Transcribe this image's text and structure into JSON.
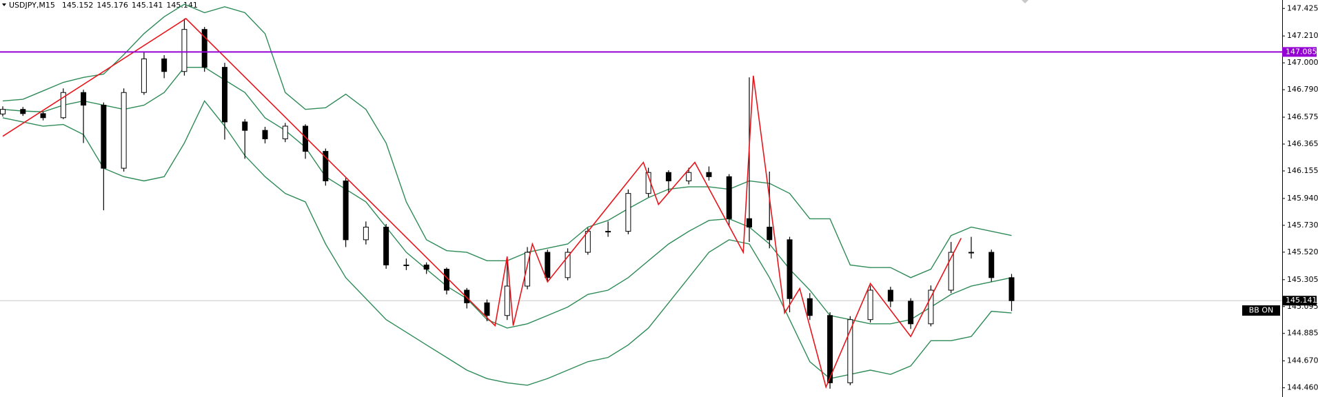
{
  "chart_data": {
    "type": "candlestick",
    "title": "USDJPY,M15",
    "quote": [
      145.152,
      145.176,
      145.141,
      145.141
    ],
    "ylim": [
      144.388,
      147.491
    ],
    "yticks": [
      147.425,
      {
        "value": 147.21,
        "label": "147.210"
      },
      {
        "value": 147,
        "label": "147.000"
      },
      {
        "value": 146.79,
        "label": "146.790"
      },
      146.575,
      146.365,
      146.155,
      {
        "value": 145.94,
        "label": "145.940"
      },
      {
        "value": 145.73,
        "label": "145.730"
      },
      {
        "value": 145.52,
        "label": "145.520"
      },
      145.305,
      145.095,
      144.885,
      {
        "value": 144.67,
        "label": "144.670"
      },
      {
        "value": 144.46,
        "label": "144.460"
      }
    ],
    "candles": {
      "open": [
        146.6,
        146.636,
        146.603,
        146.571,
        146.768,
        146.669,
        146.176,
        146.768,
        147.031,
        146.932,
        147.261,
        146.965,
        146.538,
        146.472,
        146.406,
        146.505,
        146.308,
        146.077,
        145.617,
        145.716,
        145.42,
        145.42,
        145.387,
        145.223,
        145.124,
        145.025,
        145.255,
        145.519,
        145.321,
        145.519,
        145.683,
        145.683,
        145.979,
        146.143,
        146.077,
        146.143,
        146.11,
        145.782,
        145.716,
        145.617,
        145.157,
        145.025,
        144.499,
        144.993,
        145.223,
        145.137,
        144.96,
        145.223,
        145.519,
        145.519,
        145.321
      ],
      "high": [
        146.66,
        146.655,
        146.62,
        146.8,
        146.79,
        146.69,
        146.8,
        147.09,
        147.06,
        147.346,
        147.28,
        147.0,
        146.56,
        146.5,
        146.53,
        146.52,
        146.33,
        146.1,
        145.76,
        145.74,
        145.47,
        145.44,
        145.4,
        145.24,
        145.15,
        145.45,
        145.56,
        145.54,
        145.55,
        145.71,
        145.76,
        146.01,
        146.18,
        146.16,
        146.18,
        146.19,
        146.13,
        146.886,
        146.15,
        145.64,
        145.2,
        145.05,
        145.02,
        145.26,
        145.25,
        145.16,
        145.26,
        145.6,
        145.64,
        145.54,
        145.35
      ],
      "low": [
        146.58,
        146.585,
        146.55,
        146.56,
        146.373,
        145.847,
        146.15,
        146.75,
        146.88,
        146.9,
        146.93,
        146.4,
        146.25,
        146.37,
        146.38,
        146.25,
        146.04,
        145.56,
        145.58,
        145.39,
        145.38,
        145.35,
        145.19,
        145.08,
        144.98,
        144.99,
        145.23,
        145.29,
        145.3,
        145.5,
        145.64,
        145.66,
        145.95,
        145.98,
        146.05,
        146.08,
        145.72,
        145.6,
        145.55,
        145.05,
        144.99,
        144.453,
        144.48,
        144.97,
        145.09,
        144.92,
        144.94,
        145.2,
        145.47,
        145.29,
        145.06
      ],
      "close": [
        146.636,
        146.603,
        146.571,
        146.768,
        146.669,
        146.176,
        146.768,
        147.031,
        146.932,
        147.261,
        146.965,
        146.538,
        146.472,
        146.406,
        146.505,
        146.308,
        146.077,
        145.617,
        145.716,
        145.42,
        145.42,
        145.387,
        145.223,
        145.124,
        145.025,
        145.255,
        145.519,
        145.321,
        145.519,
        145.683,
        145.683,
        145.979,
        146.143,
        146.077,
        146.143,
        146.11,
        145.782,
        145.716,
        145.617,
        145.157,
        145.025,
        144.499,
        144.993,
        145.223,
        145.137,
        144.96,
        145.223,
        145.519,
        145.519,
        145.321,
        145.141
      ]
    },
    "bands": {
      "color": "#2e8b57",
      "upper": [
        146.702,
        146.715,
        146.781,
        146.847,
        146.886,
        146.912,
        147.064,
        147.228,
        147.36,
        147.458,
        147.392,
        147.438,
        147.392,
        147.228,
        146.768,
        146.636,
        146.649,
        146.755,
        146.636,
        146.373,
        145.913,
        145.617,
        145.532,
        145.519,
        145.453,
        145.453,
        145.519,
        145.551,
        145.584,
        145.716,
        145.768,
        145.86,
        145.946,
        146.012,
        146.031,
        146.031,
        146.012,
        146.077,
        146.058,
        145.979,
        145.781,
        145.781,
        145.42,
        145.4,
        145.4,
        145.321,
        145.387,
        145.65,
        145.716,
        145.683,
        145.65
      ],
      "middle": [
        146.636,
        146.623,
        146.617,
        146.669,
        146.702,
        146.669,
        146.636,
        146.669,
        146.768,
        146.965,
        146.965,
        146.866,
        146.768,
        146.57,
        146.472,
        146.34,
        146.11,
        146.012,
        145.913,
        145.716,
        145.519,
        145.387,
        145.255,
        145.157,
        144.993,
        144.927,
        144.96,
        145.025,
        145.091,
        145.19,
        145.223,
        145.321,
        145.453,
        145.584,
        145.683,
        145.768,
        145.781,
        145.716,
        145.584,
        145.387,
        145.223,
        145.025,
        144.993,
        144.96,
        144.96,
        144.993,
        145.091,
        145.19,
        145.255,
        145.288,
        145.321
      ],
      "lower": [
        146.57,
        146.538,
        146.505,
        146.518,
        146.439,
        146.176,
        146.11,
        146.077,
        146.11,
        146.373,
        146.702,
        146.505,
        146.275,
        146.11,
        145.979,
        145.913,
        145.584,
        145.321,
        145.157,
        144.993,
        144.894,
        144.795,
        144.697,
        144.598,
        144.532,
        144.499,
        144.48,
        144.532,
        144.598,
        144.664,
        144.697,
        144.795,
        144.927,
        145.124,
        145.321,
        145.519,
        145.617,
        145.584,
        145.321,
        144.993,
        144.664,
        144.532,
        144.565,
        144.598,
        144.565,
        144.631,
        144.828,
        144.828,
        144.861,
        145.058,
        145.045
      ]
    },
    "zigzag": {
      "color": "#e8141b",
      "x": [
        0,
        9.08,
        24.4,
        25,
        25.3,
        26.25,
        27,
        31.75,
        32.5,
        34.3,
        36.7,
        37.2,
        38.75,
        39.5,
        40.8,
        43,
        45,
        47.5
      ],
      "y": [
        146.426,
        147.346,
        144.946,
        145.486,
        144.946,
        145.584,
        145.288,
        146.222,
        145.893,
        146.222,
        145.519,
        146.899,
        145.045,
        145.236,
        144.466,
        145.275,
        144.861,
        145.63
      ]
    },
    "level": {
      "value": 147.085,
      "color": "#9400d3"
    },
    "bid": 145.141,
    "badge": "BB ON"
  }
}
